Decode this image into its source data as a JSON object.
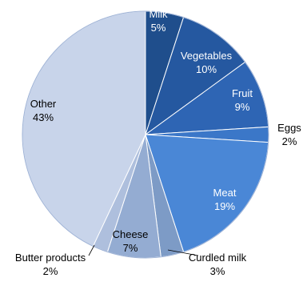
{
  "chart_data": {
    "type": "pie",
    "title": "",
    "slices": [
      {
        "label": "Milk",
        "value": 5,
        "display": "5%",
        "color": "#1f4e8c",
        "text_color": "#ffffff"
      },
      {
        "label": "Vegetables",
        "value": 10,
        "display": "10%",
        "color": "#2558a0",
        "text_color": "#ffffff"
      },
      {
        "label": "Fruit",
        "value": 9,
        "display": "9%",
        "color": "#2e65b4",
        "text_color": "#ffffff"
      },
      {
        "label": "Eggs",
        "value": 2,
        "display": "2%",
        "color": "#3b77c8",
        "text_color": "#000000"
      },
      {
        "label": "Meat",
        "value": 19,
        "display": "19%",
        "color": "#4a87d6",
        "text_color": "#ffffff"
      },
      {
        "label": "Curdled milk",
        "value": 3,
        "display": "3%",
        "color": "#7d9bc6",
        "text_color": "#000000"
      },
      {
        "label": "Cheese",
        "value": 7,
        "display": "7%",
        "color": "#94acd2",
        "text_color": "#000000"
      },
      {
        "label": "Butter products",
        "value": 2,
        "display": "2%",
        "color": "#aebfdd",
        "text_color": "#000000"
      },
      {
        "label": "Other",
        "value": 43,
        "display": "43%",
        "color": "#c8d4ea",
        "text_color": "#000000"
      }
    ],
    "start_angle": "12 o'clock",
    "direction": "clockwise",
    "legend": "none"
  }
}
